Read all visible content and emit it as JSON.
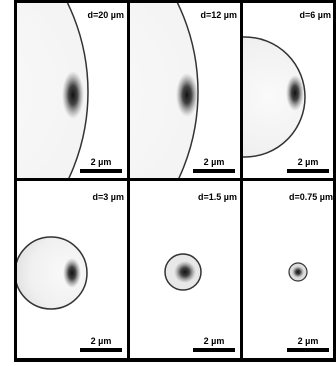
{
  "panels": [
    {
      "label": "d=20 µm",
      "scale_bar": "2 µm"
    },
    {
      "label": "d=12 µm",
      "scale_bar": "2 µm"
    },
    {
      "label": "d=6 µm",
      "scale_bar": "2 µm"
    },
    {
      "label": "d=3 µm",
      "scale_bar": "2 µm"
    },
    {
      "label": "d=1.5 µm",
      "scale_bar": "2 µm"
    },
    {
      "label": "d=0.75 µm",
      "scale_bar": "2 µm"
    }
  ]
}
